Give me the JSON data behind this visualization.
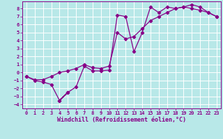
{
  "xlabel": "Windchill (Refroidissement éolien,°C)",
  "xlim": [
    -0.5,
    23.5
  ],
  "ylim": [
    -4.5,
    8.9
  ],
  "xticks": [
    0,
    1,
    2,
    3,
    4,
    5,
    6,
    7,
    8,
    9,
    10,
    11,
    12,
    13,
    14,
    15,
    16,
    17,
    18,
    19,
    20,
    21,
    22,
    23
  ],
  "yticks": [
    -4,
    -3,
    -2,
    -1,
    0,
    1,
    2,
    3,
    4,
    5,
    6,
    7,
    8
  ],
  "line_color": "#880088",
  "bg_color": "#b8e8e8",
  "grid_color": "#aad8d8",
  "series1_x": [
    0,
    1,
    2,
    3,
    4,
    5,
    4,
    5,
    6,
    7,
    8,
    9,
    10,
    11,
    12,
    13,
    14,
    15,
    16,
    17,
    18,
    19,
    20,
    21,
    22,
    23
  ],
  "series1_y": [
    -0.5,
    -1.0,
    -1.2,
    -1.5,
    -3.5,
    -2.5,
    -3.5,
    -2.5,
    -1.8,
    0.8,
    0.2,
    0.2,
    0.3,
    7.2,
    7.0,
    2.6,
    5.0,
    8.2,
    7.5,
    8.2,
    8.0,
    8.2,
    8.0,
    7.8,
    7.5,
    7.0
  ],
  "series2_x": [
    0,
    1,
    2,
    3,
    4,
    5,
    6,
    7,
    8,
    9,
    10,
    11,
    12,
    13,
    14,
    15,
    16,
    17,
    18,
    19,
    20,
    21,
    22,
    23
  ],
  "series2_y": [
    -0.5,
    -0.9,
    -0.9,
    -0.5,
    0.0,
    0.2,
    0.5,
    1.0,
    0.6,
    0.5,
    0.8,
    5.0,
    4.2,
    4.5,
    5.5,
    6.5,
    7.0,
    7.5,
    8.0,
    8.2,
    8.5,
    8.2,
    7.5,
    7.0
  ],
  "marker": "D",
  "marker_size": 2.2,
  "linewidth": 0.9,
  "tick_fontsize": 5.0,
  "xlabel_fontsize": 6.0
}
